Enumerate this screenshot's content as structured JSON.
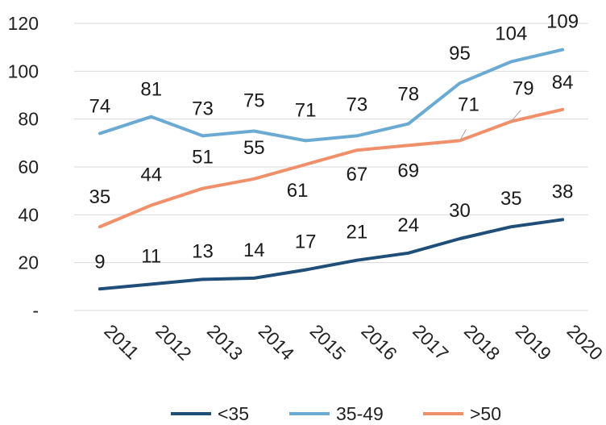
{
  "chart_data": {
    "type": "line",
    "title": "",
    "xlabel": "",
    "ylabel": "",
    "x": [
      "2011",
      "2012",
      "2013",
      "2014",
      "2015",
      "2016",
      "2017",
      "2018",
      "2019",
      "2020"
    ],
    "ylim": [
      0,
      120
    ],
    "y_ticks": [
      0,
      20,
      40,
      60,
      80,
      100,
      120
    ],
    "y_tick_labels": [
      "-",
      "20",
      "40",
      "60",
      "80",
      "100",
      "120"
    ],
    "grid": "horizontal",
    "legend_position": "bottom",
    "series": [
      {
        "name": "<35",
        "color": "#1f4e79",
        "values": [
          9,
          11,
          13,
          13.5,
          17,
          21,
          24,
          30,
          35,
          38
        ],
        "labels": [
          "9",
          "11",
          "13",
          "14",
          "17",
          "21",
          "24",
          "30",
          "35",
          "38"
        ]
      },
      {
        "name": "35-49",
        "color": "#6aaad3",
        "values": [
          74,
          81,
          73,
          75,
          71,
          73,
          78,
          95,
          104,
          109
        ],
        "labels": [
          "74",
          "81",
          "73",
          "75",
          "71",
          "73",
          "78",
          "95",
          "104",
          "109"
        ]
      },
      {
        "name": ">50",
        "color": "#f0906a",
        "values": [
          35,
          44,
          51,
          55,
          61,
          67,
          69,
          71,
          79,
          84
        ],
        "labels": [
          "35",
          "44",
          "51",
          "55",
          "61",
          "67",
          "69",
          "71",
          "79",
          "84"
        ]
      }
    ]
  }
}
